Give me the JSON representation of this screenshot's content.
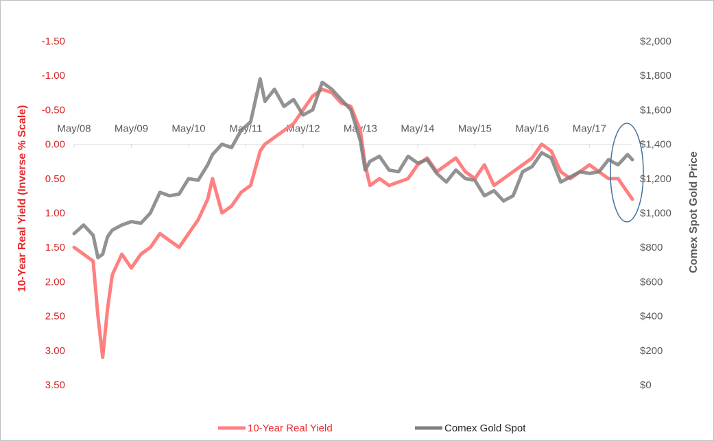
{
  "chart_data": {
    "type": "line",
    "left_axis": {
      "title": "10-Year Real Yield (Inverse % Scale)",
      "ticks": [
        "-1.50",
        "-1.00",
        "-0.50",
        "0.00",
        "0.50",
        "1.00",
        "1.50",
        "2.00",
        "2.50",
        "3.00",
        "3.50"
      ],
      "ylim": [
        -1.5,
        3.5
      ],
      "inverted": true,
      "color": "#e8292c"
    },
    "right_axis": {
      "title": "Comex Spot Gold Price",
      "ticks": [
        "$2,000",
        "$1,800",
        "$1,600",
        "$1,400",
        "$1,200",
        "$1,000",
        "$800",
        "$600",
        "$400",
        "$200",
        "$0"
      ],
      "ylim": [
        0,
        2000
      ],
      "color": "#595959"
    },
    "x_axis": {
      "ticks": [
        "May/08",
        "May/09",
        "May/10",
        "May/11",
        "May/12",
        "May/13",
        "May/14",
        "May/15",
        "May/16",
        "May/17"
      ],
      "xlim": [
        "2008-05",
        "2018-02"
      ],
      "position": "at zero real yield"
    },
    "series": [
      {
        "name": "10-Year Real Yield",
        "axis": "left",
        "color": "#ff8080",
        "x": [
          "2008-05",
          "2008-07",
          "2008-09",
          "2008-10",
          "2008-11",
          "2008-12",
          "2009-01",
          "2009-03",
          "2009-05",
          "2009-07",
          "2009-09",
          "2009-11",
          "2010-01",
          "2010-03",
          "2010-05",
          "2010-07",
          "2010-09",
          "2010-10",
          "2010-12",
          "2011-02",
          "2011-04",
          "2011-06",
          "2011-08",
          "2011-09",
          "2011-11",
          "2012-01",
          "2012-03",
          "2012-05",
          "2012-07",
          "2012-09",
          "2012-11",
          "2013-01",
          "2013-03",
          "2013-05",
          "2013-06",
          "2013-07",
          "2013-09",
          "2013-11",
          "2014-01",
          "2014-03",
          "2014-05",
          "2014-07",
          "2014-09",
          "2014-11",
          "2015-01",
          "2015-03",
          "2015-05",
          "2015-07",
          "2015-09",
          "2015-11",
          "2016-01",
          "2016-03",
          "2016-05",
          "2016-07",
          "2016-09",
          "2016-11",
          "2017-01",
          "2017-03",
          "2017-05",
          "2017-07",
          "2017-09",
          "2017-11",
          "2018-01",
          "2018-02"
        ],
        "values": [
          1.5,
          1.6,
          1.7,
          2.5,
          3.1,
          2.4,
          1.9,
          1.6,
          1.8,
          1.6,
          1.5,
          1.3,
          1.4,
          1.5,
          1.3,
          1.1,
          0.8,
          0.5,
          1.0,
          0.9,
          0.7,
          0.6,
          0.1,
          0.0,
          -0.1,
          -0.2,
          -0.3,
          -0.5,
          -0.7,
          -0.8,
          -0.75,
          -0.6,
          -0.55,
          -0.2,
          0.3,
          0.6,
          0.5,
          0.6,
          0.55,
          0.5,
          0.3,
          0.2,
          0.4,
          0.3,
          0.2,
          0.4,
          0.5,
          0.3,
          0.6,
          0.5,
          0.4,
          0.3,
          0.2,
          0.0,
          0.1,
          0.4,
          0.5,
          0.4,
          0.3,
          0.4,
          0.5,
          0.5,
          0.7,
          0.8
        ]
      },
      {
        "name": "Comex Gold  Spot",
        "axis": "right",
        "color": "#7f7f7f",
        "x": [
          "2008-05",
          "2008-07",
          "2008-09",
          "2008-10",
          "2008-11",
          "2008-12",
          "2009-01",
          "2009-03",
          "2009-05",
          "2009-07",
          "2009-09",
          "2009-11",
          "2010-01",
          "2010-03",
          "2010-05",
          "2010-07",
          "2010-09",
          "2010-10",
          "2010-12",
          "2011-02",
          "2011-04",
          "2011-06",
          "2011-08",
          "2011-09",
          "2011-11",
          "2012-01",
          "2012-03",
          "2012-05",
          "2012-07",
          "2012-09",
          "2012-11",
          "2013-01",
          "2013-03",
          "2013-05",
          "2013-06",
          "2013-07",
          "2013-09",
          "2013-11",
          "2014-01",
          "2014-03",
          "2014-05",
          "2014-07",
          "2014-09",
          "2014-11",
          "2015-01",
          "2015-03",
          "2015-05",
          "2015-07",
          "2015-09",
          "2015-11",
          "2016-01",
          "2016-03",
          "2016-05",
          "2016-07",
          "2016-09",
          "2016-11",
          "2017-01",
          "2017-03",
          "2017-05",
          "2017-07",
          "2017-09",
          "2017-11",
          "2018-01",
          "2018-02"
        ],
        "values": [
          880,
          930,
          870,
          740,
          760,
          860,
          900,
          930,
          950,
          940,
          1000,
          1120,
          1100,
          1110,
          1200,
          1190,
          1280,
          1340,
          1400,
          1380,
          1480,
          1530,
          1780,
          1650,
          1720,
          1620,
          1660,
          1570,
          1600,
          1760,
          1720,
          1660,
          1600,
          1420,
          1250,
          1300,
          1330,
          1250,
          1240,
          1330,
          1290,
          1310,
          1230,
          1180,
          1250,
          1200,
          1190,
          1100,
          1130,
          1070,
          1100,
          1240,
          1270,
          1350,
          1320,
          1180,
          1210,
          1240,
          1230,
          1240,
          1310,
          1280,
          1340,
          1310
        ]
      }
    ],
    "legend": {
      "placement": "bottom-center"
    }
  }
}
